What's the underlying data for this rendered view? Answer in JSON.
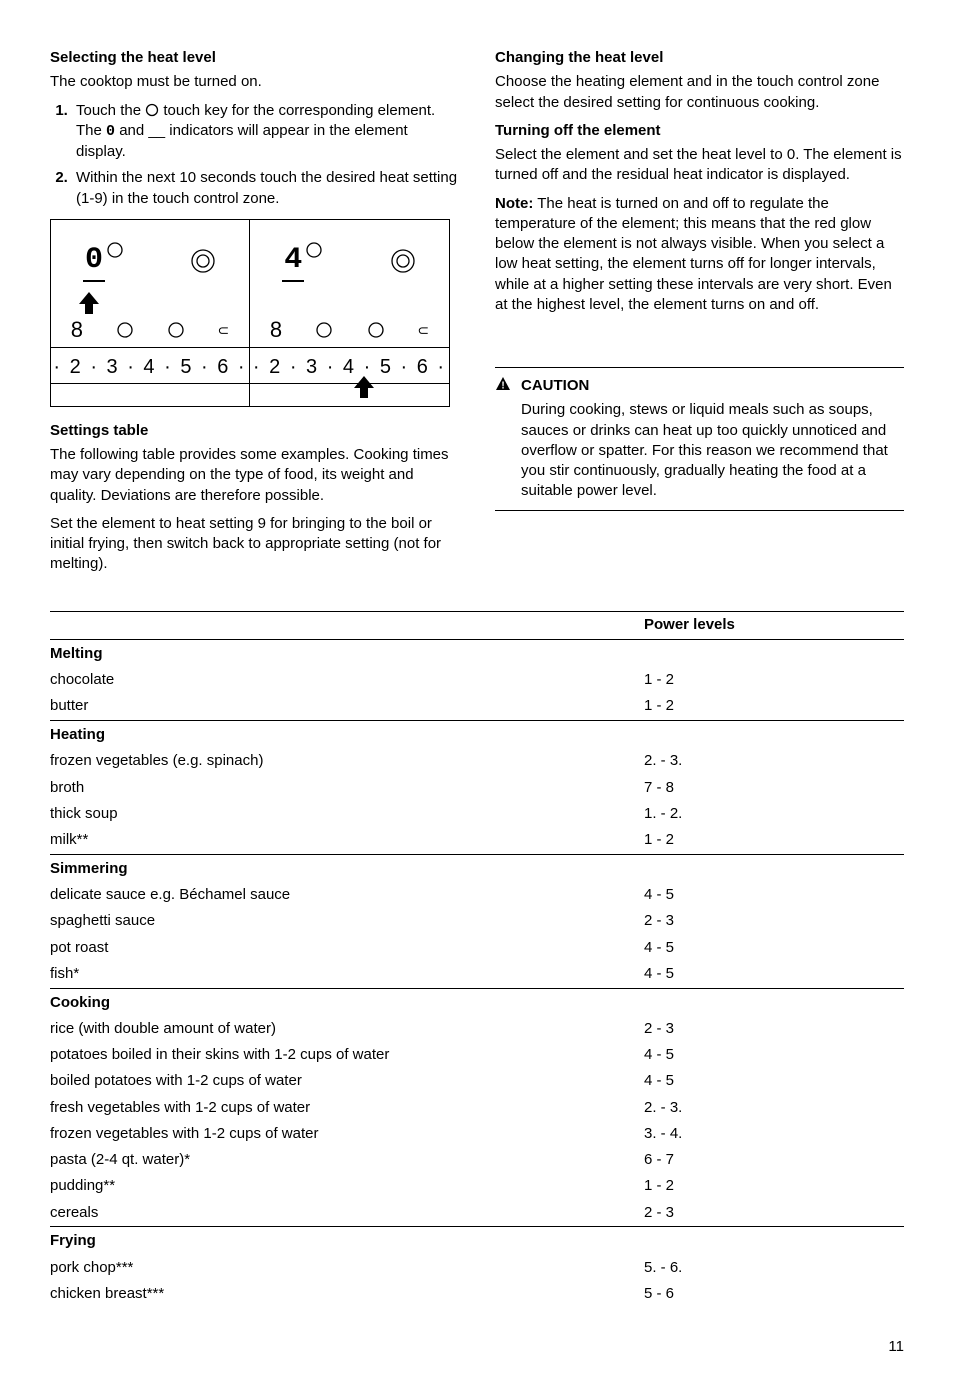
{
  "left": {
    "h1": "Selecting the heat level",
    "p1": "The cooktop must be turned on.",
    "step1_a": "Touch the ",
    "step1_b": " touch key for the corresponding element. The ",
    "step1_c": " and __ indicators will appear in the element display.",
    "step1_seg": "0",
    "step2": "Within the next 10 seconds touch the desired heat setting (1-9) in the touch control zone.",
    "diagram_seg_left": "0",
    "diagram_seg_right": "4",
    "diagram_scale": "· 2 · 3 · 4 · 5 · 6 ·",
    "h2": "Settings table",
    "p2": "The following table provides some examples. Cooking times may vary depending on the type of food, its weight and quality. Deviations are therefore possible.",
    "p3": "Set the element to heat setting 9 for bringing to the boil or initial frying, then switch back to appropriate setting (not for melting)."
  },
  "right": {
    "h1": "Changing the heat level",
    "p1": "Choose the heating element and in the touch control zone select the desired setting for continuous cooking.",
    "h2": "Turning off the element",
    "p2": "Select the element and set the heat level to 0. The element is turned off and the residual heat indicator is displayed.",
    "note_label": "Note:",
    "note_body": " The heat is turned on and off to regulate the temperature of the element; this means that the red glow below the element is not always visible. When you select a low heat setting, the element turns off for longer intervals, while at a higher setting these intervals are very short. Even at the highest level, the element turns on and off.",
    "caution_label": "CAUTION",
    "caution_body": "During cooking, stews or liquid meals such as soups, sauces or drinks can heat up too quickly unnoticed and overflow or spatter. For this reason we recommend that you stir continuously, gradually heating the food at a suitable power level."
  },
  "table": {
    "header_right": "Power levels",
    "sections": [
      {
        "cat": "Melting",
        "rows": [
          {
            "item": "chocolate",
            "level": "1 - 2"
          },
          {
            "item": "butter",
            "level": "1 - 2"
          }
        ]
      },
      {
        "cat": "Heating",
        "rows": [
          {
            "item": "frozen vegetables (e.g. spinach)",
            "level": "2. - 3."
          },
          {
            "item": "broth",
            "level": "7 - 8"
          },
          {
            "item": "thick soup",
            "level": "1. - 2."
          },
          {
            "item": "milk**",
            "level": "1 - 2"
          }
        ]
      },
      {
        "cat": "Simmering",
        "rows": [
          {
            "item": "delicate sauce e.g. Béchamel sauce",
            "level": "4 - 5"
          },
          {
            "item": "spaghetti sauce",
            "level": "2 - 3"
          },
          {
            "item": "pot roast",
            "level": "4 - 5"
          },
          {
            "item": "fish*",
            "level": "4 - 5"
          }
        ]
      },
      {
        "cat": "Cooking",
        "rows": [
          {
            "item": "rice (with double amount of water)",
            "level": "2 - 3"
          },
          {
            "item": "potatoes boiled in their skins with 1-2 cups of water",
            "level": "4 - 5"
          },
          {
            "item": "boiled potatoes with 1-2 cups of water",
            "level": "4 - 5"
          },
          {
            "item": "fresh vegetables with 1-2 cups of water",
            "level": "2. - 3."
          },
          {
            "item": "frozen vegetables with 1-2 cups of water",
            "level": "3. - 4."
          },
          {
            "item": "pasta (2-4 qt. water)*",
            "level": "6 - 7"
          },
          {
            "item": "pudding**",
            "level": "1 - 2"
          },
          {
            "item": "cereals",
            "level": "2 - 3"
          }
        ]
      },
      {
        "cat": "Frying",
        "rows": [
          {
            "item": "pork chop***",
            "level": "5. - 6."
          },
          {
            "item": "chicken breast***",
            "level": "5 - 6"
          }
        ]
      }
    ]
  },
  "page": "11"
}
